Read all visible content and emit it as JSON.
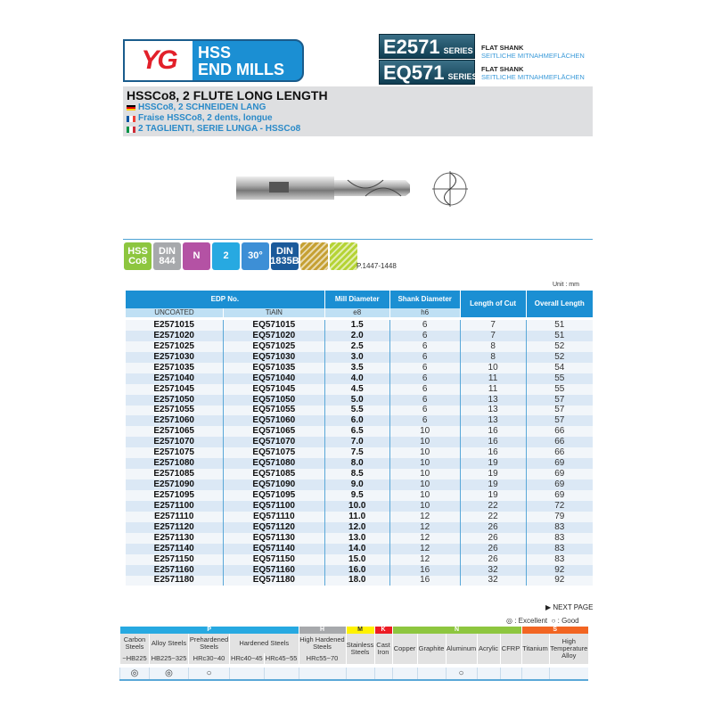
{
  "brand": {
    "logo": "YG",
    "title_line1": "HSS",
    "title_line2": "END MILLS"
  },
  "series": [
    {
      "code": "E2571",
      "suffix": "SERIES",
      "label": "FLAT SHANK",
      "label_de": "SEITLICHE MITNAHMEFLÄCHEN"
    },
    {
      "code": "EQ571",
      "suffix": "SERIES",
      "label": "FLAT SHANK",
      "label_de": "SEITLICHE MITNAHMEFLÄCHEN"
    }
  ],
  "titles": {
    "en": "HSSCo8, 2 FLUTE LONG LENGTH",
    "de": "HSSCo8, 2 SCHNEIDEN LANG",
    "fr": "Fraise HSSCo8, 2 dents, longue",
    "it": "2 TAGLIENTI, SERIE LUNGA - HSSCo8"
  },
  "icons": [
    {
      "name": "hss-co8",
      "text": "HSS Co8",
      "color": "#8dc63f"
    },
    {
      "name": "din-844",
      "text": "DIN 844",
      "color": "#a7a9ac"
    },
    {
      "name": "n-type",
      "text": "N",
      "color": "#b452a4"
    },
    {
      "name": "2-flute",
      "text": "2",
      "color": "#27a9e1"
    },
    {
      "name": "helix-30",
      "text": "30°",
      "color": "#3d8fd6"
    },
    {
      "name": "din-1835b",
      "text": "DIN 1835B",
      "color": "#1b5a9a"
    },
    {
      "name": "center-cut",
      "text": "",
      "color": "#c5a032"
    },
    {
      "name": "side-cut",
      "text": "",
      "color": "#b5d334"
    }
  ],
  "page_ref": "P.1447-1448",
  "unit": "Unit : mm",
  "table": {
    "headers": {
      "edp": "EDP No.",
      "uncoated": "UNCOATED",
      "tialn": "TiAlN",
      "mill": "Mill Diameter",
      "mill_tol": "e8",
      "shank": "Shank Diameter",
      "shank_tol": "h6",
      "loc": "Length of Cut",
      "oal": "Overall Length"
    },
    "rows": [
      [
        "E2571015",
        "EQ571015",
        "1.5",
        "6",
        "7",
        "51"
      ],
      [
        "E2571020",
        "EQ571020",
        "2.0",
        "6",
        "7",
        "51"
      ],
      [
        "E2571025",
        "EQ571025",
        "2.5",
        "6",
        "8",
        "52"
      ],
      [
        "E2571030",
        "EQ571030",
        "3.0",
        "6",
        "8",
        "52"
      ],
      [
        "E2571035",
        "EQ571035",
        "3.5",
        "6",
        "10",
        "54"
      ],
      [
        "E2571040",
        "EQ571040",
        "4.0",
        "6",
        "11",
        "55"
      ],
      [
        "E2571045",
        "EQ571045",
        "4.5",
        "6",
        "11",
        "55"
      ],
      [
        "E2571050",
        "EQ571050",
        "5.0",
        "6",
        "13",
        "57"
      ],
      [
        "E2571055",
        "EQ571055",
        "5.5",
        "6",
        "13",
        "57"
      ],
      [
        "E2571060",
        "EQ571060",
        "6.0",
        "6",
        "13",
        "57"
      ],
      [
        "E2571065",
        "EQ571065",
        "6.5",
        "10",
        "16",
        "66"
      ],
      [
        "E2571070",
        "EQ571070",
        "7.0",
        "10",
        "16",
        "66"
      ],
      [
        "E2571075",
        "EQ571075",
        "7.5",
        "10",
        "16",
        "66"
      ],
      [
        "E2571080",
        "EQ571080",
        "8.0",
        "10",
        "19",
        "69"
      ],
      [
        "E2571085",
        "EQ571085",
        "8.5",
        "10",
        "19",
        "69"
      ],
      [
        "E2571090",
        "EQ571090",
        "9.0",
        "10",
        "19",
        "69"
      ],
      [
        "E2571095",
        "EQ571095",
        "9.5",
        "10",
        "19",
        "69"
      ],
      [
        "E2571100",
        "EQ571100",
        "10.0",
        "10",
        "22",
        "72"
      ],
      [
        "E2571110",
        "EQ571110",
        "11.0",
        "12",
        "22",
        "79"
      ],
      [
        "E2571120",
        "EQ571120",
        "12.0",
        "12",
        "26",
        "83"
      ],
      [
        "E2571130",
        "EQ571130",
        "13.0",
        "12",
        "26",
        "83"
      ],
      [
        "E2571140",
        "EQ571140",
        "14.0",
        "12",
        "26",
        "83"
      ],
      [
        "E2571150",
        "EQ571150",
        "15.0",
        "12",
        "26",
        "83"
      ],
      [
        "E2571160",
        "EQ571160",
        "16.0",
        "16",
        "32",
        "92"
      ],
      [
        "E2571180",
        "EQ571180",
        "18.0",
        "16",
        "32",
        "92"
      ]
    ]
  },
  "next_page": "▶ NEXT PAGE",
  "legend": {
    "excellent": "◎ : Excellent",
    "good": "○ : Good"
  },
  "materials": {
    "groups": [
      {
        "label": "P",
        "span": 5,
        "color": "#27a9e1"
      },
      {
        "label": "H",
        "span": 1,
        "color": "#a7a9ac"
      },
      {
        "label": "M",
        "span": 1,
        "color": "#fff200"
      },
      {
        "label": "K",
        "span": 1,
        "color": "#ed1c24"
      },
      {
        "label": "N",
        "span": 5,
        "color": "#8dc63f"
      },
      {
        "label": "S",
        "span": 2,
        "color": "#f26522"
      }
    ],
    "columns": [
      {
        "name": "Carbon Steels",
        "hardness": "~HB225",
        "rating": "◎"
      },
      {
        "name": "Alloy Steels",
        "hardness": "HB225~325",
        "rating": "◎"
      },
      {
        "name": "Prehardened Steels",
        "hardness": "HRc30~40",
        "rating": "○"
      },
      {
        "name": "Hardened Steels",
        "hardness": "HRc40~45",
        "rating": ""
      },
      {
        "name": "",
        "hardness": "HRc45~55",
        "rating": ""
      },
      {
        "name": "High Hardened Steels",
        "hardness": "HRc55~70",
        "rating": ""
      },
      {
        "name": "Stainless Steels",
        "hardness": "",
        "rating": ""
      },
      {
        "name": "Cast Iron",
        "hardness": "",
        "rating": ""
      },
      {
        "name": "Copper",
        "hardness": "",
        "rating": ""
      },
      {
        "name": "Graphite",
        "hardness": "",
        "rating": ""
      },
      {
        "name": "Aluminum",
        "hardness": "",
        "rating": "○"
      },
      {
        "name": "Acrylic",
        "hardness": "",
        "rating": ""
      },
      {
        "name": "CFRP",
        "hardness": "",
        "rating": ""
      },
      {
        "name": "Titanium",
        "hardness": "",
        "rating": ""
      },
      {
        "name": "High Temperature Alloy",
        "hardness": "",
        "rating": ""
      }
    ]
  }
}
